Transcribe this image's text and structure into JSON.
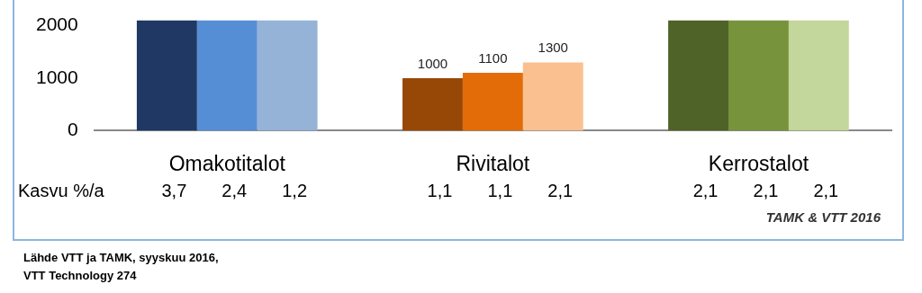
{
  "chart_data": {
    "type": "bar",
    "categories": [
      "Omakotitalot",
      "Rivitalot",
      "Kerrostalot"
    ],
    "series": [
      {
        "colors": [
          "#1f3864",
          "#974806",
          "#4f6228"
        ],
        "values": [
          2100,
          1000,
          2100
        ],
        "value_labels": [
          null,
          "1000",
          null
        ]
      },
      {
        "colors": [
          "#558ed5",
          "#e36c09",
          "#77933c"
        ],
        "values": [
          2100,
          1100,
          2100
        ],
        "value_labels": [
          null,
          "1100",
          null
        ]
      },
      {
        "colors": [
          "#95b3d7",
          "#fac090",
          "#c3d69b"
        ],
        "values": [
          2100,
          1300,
          2100
        ],
        "value_labels": [
          null,
          "1300",
          null
        ]
      }
    ],
    "ylim": [
      0,
      2100
    ],
    "yticks": [
      0,
      1000,
      2000
    ],
    "grid": false,
    "legend": false,
    "annotations": [
      "Kasvu %/a",
      "3,7",
      "2,4",
      "1,2",
      "1,1",
      "1,1",
      "2,1",
      "2,1",
      "2,1",
      "2,1",
      "TAMK & VTT 2016",
      "Lähde VTT ja TAMK, syyskuu 2016,",
      "VTT Technology 274"
    ]
  }
}
